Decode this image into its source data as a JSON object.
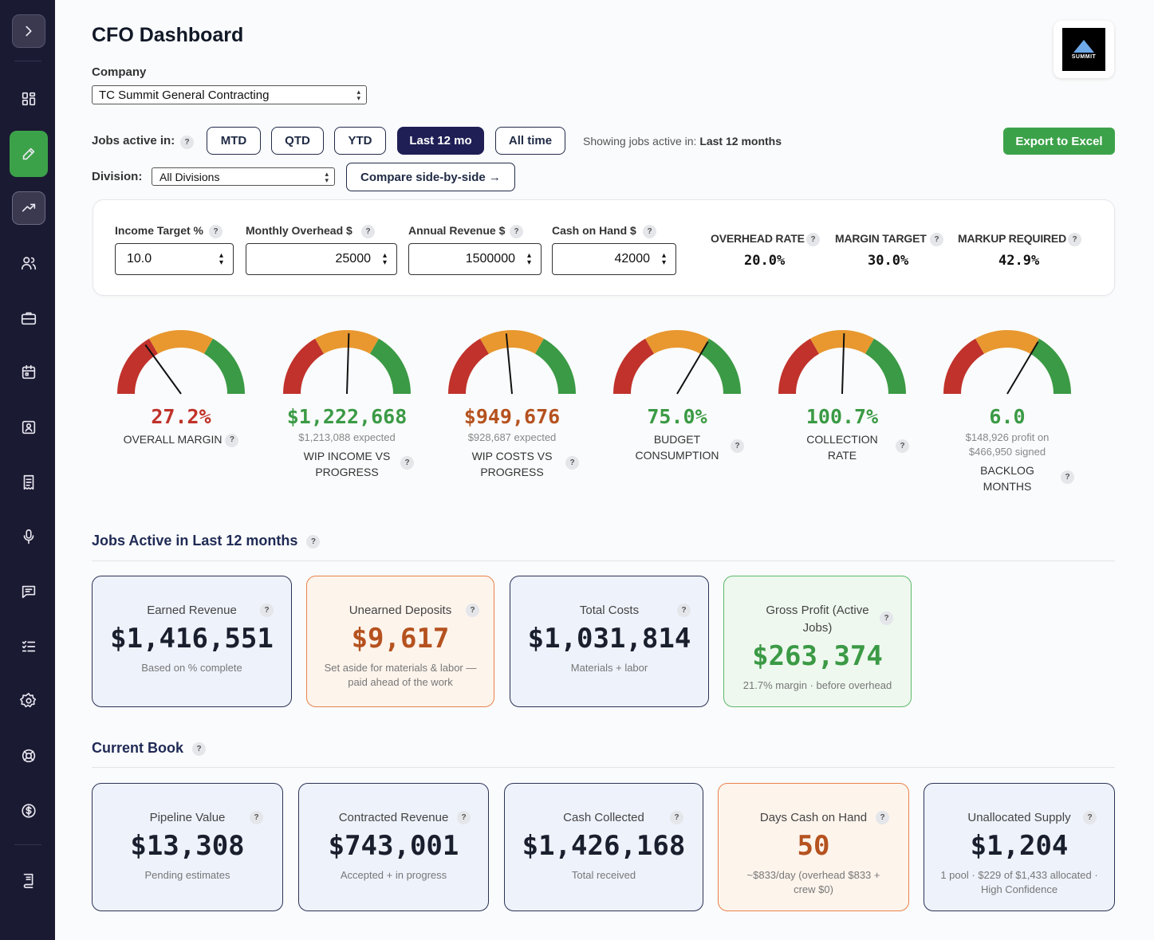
{
  "header": {
    "title": "CFO Dashboard",
    "logo_text": "SUMMIT"
  },
  "company": {
    "label": "Company",
    "selected": "TC Summit General Contracting"
  },
  "jobs_filter": {
    "label": "Jobs active in:",
    "periods": [
      "MTD",
      "QTD",
      "YTD",
      "Last 12 mo",
      "All time"
    ],
    "active_period": "Last 12 mo",
    "showing_prefix": "Showing jobs active in:",
    "showing_value": "Last 12 months",
    "export_label": "Export to Excel"
  },
  "division": {
    "label": "Division:",
    "selected": "All Divisions",
    "compare_label": "Compare side-by-side →"
  },
  "settings": {
    "income_target": {
      "label": "Income Target %",
      "value": "10.0"
    },
    "monthly_overhead": {
      "label": "Monthly Overhead $",
      "value": "25000"
    },
    "annual_revenue": {
      "label": "Annual Revenue $",
      "value": "1500000"
    },
    "cash_on_hand": {
      "label": "Cash on Hand $",
      "value": "42000"
    },
    "overhead_rate": {
      "label": "OVERHEAD RATE",
      "value": "20.0%"
    },
    "margin_target": {
      "label": "MARGIN TARGET",
      "value": "30.0%"
    },
    "markup_required": {
      "label": "MARKUP REQUIRED",
      "value": "42.9%"
    }
  },
  "gauges": [
    {
      "value": "27.2%",
      "sub": "",
      "label": "OVERALL MARGIN",
      "needle": 0.3,
      "tone": "red"
    },
    {
      "value": "$1,222,668",
      "sub": "$1,213,088 expected",
      "label": "WIP INCOME VS PROGRESS",
      "needle": 0.51,
      "tone": "green"
    },
    {
      "value": "$949,676",
      "sub": "$928,687 expected",
      "label": "WIP COSTS VS PROGRESS",
      "needle": 0.47,
      "tone": "orange"
    },
    {
      "value": "75.0%",
      "sub": "",
      "label": "BUDGET CONSUMPTION",
      "needle": 0.67,
      "tone": "green"
    },
    {
      "value": "100.7%",
      "sub": "",
      "label": "COLLECTION RATE",
      "needle": 0.51,
      "tone": "green"
    },
    {
      "value": "6.0",
      "sub": "$148,926 profit on $466,950 signed",
      "label": "BACKLOG MONTHS",
      "needle": 0.67,
      "tone": "green"
    }
  ],
  "jobs_section": {
    "title": "Jobs Active in Last 12 months",
    "cards": [
      {
        "title": "Earned Revenue",
        "value": "$1,416,551",
        "sub": "Based on % complete"
      },
      {
        "title": "Unearned Deposits",
        "value": "$9,617",
        "sub": "Set aside for materials & labor — paid ahead of the work"
      },
      {
        "title": "Total Costs",
        "value": "$1,031,814",
        "sub": "Materials + labor"
      },
      {
        "title": "Gross Profit (Active Jobs)",
        "value": "$263,374",
        "sub": "21.7% margin · before overhead"
      }
    ]
  },
  "book_section": {
    "title": "Current Book",
    "cards": [
      {
        "title": "Pipeline Value",
        "value": "$13,308",
        "sub": "Pending estimates"
      },
      {
        "title": "Contracted Revenue",
        "value": "$743,001",
        "sub": "Accepted + in progress"
      },
      {
        "title": "Cash Collected",
        "value": "$1,426,168",
        "sub": "Total received"
      },
      {
        "title": "Days Cash on Hand",
        "value": "50",
        "sub": "~$833/day (overhead $833 + crew $0)"
      },
      {
        "title": "Unallocated Supply",
        "value": "$1,204",
        "sub": "1 pool · $229 of $1,433 allocated · High Confidence"
      }
    ]
  },
  "colors": {
    "red": "#c0322b",
    "orange": "#e8982f",
    "green": "#3b9a45",
    "accent": "#3ca24a",
    "navy": "#1f1f55"
  },
  "icons": [
    "chevron-right-icon",
    "grid-icon",
    "pen-icon",
    "trend-icon",
    "users-icon",
    "briefcase-icon",
    "calendar-icon",
    "id-card-icon",
    "receipt-icon",
    "microphone-icon",
    "chat-icon",
    "checklist-icon",
    "gear-icon",
    "lifebuoy-icon",
    "dollar-icon",
    "book-icon"
  ]
}
